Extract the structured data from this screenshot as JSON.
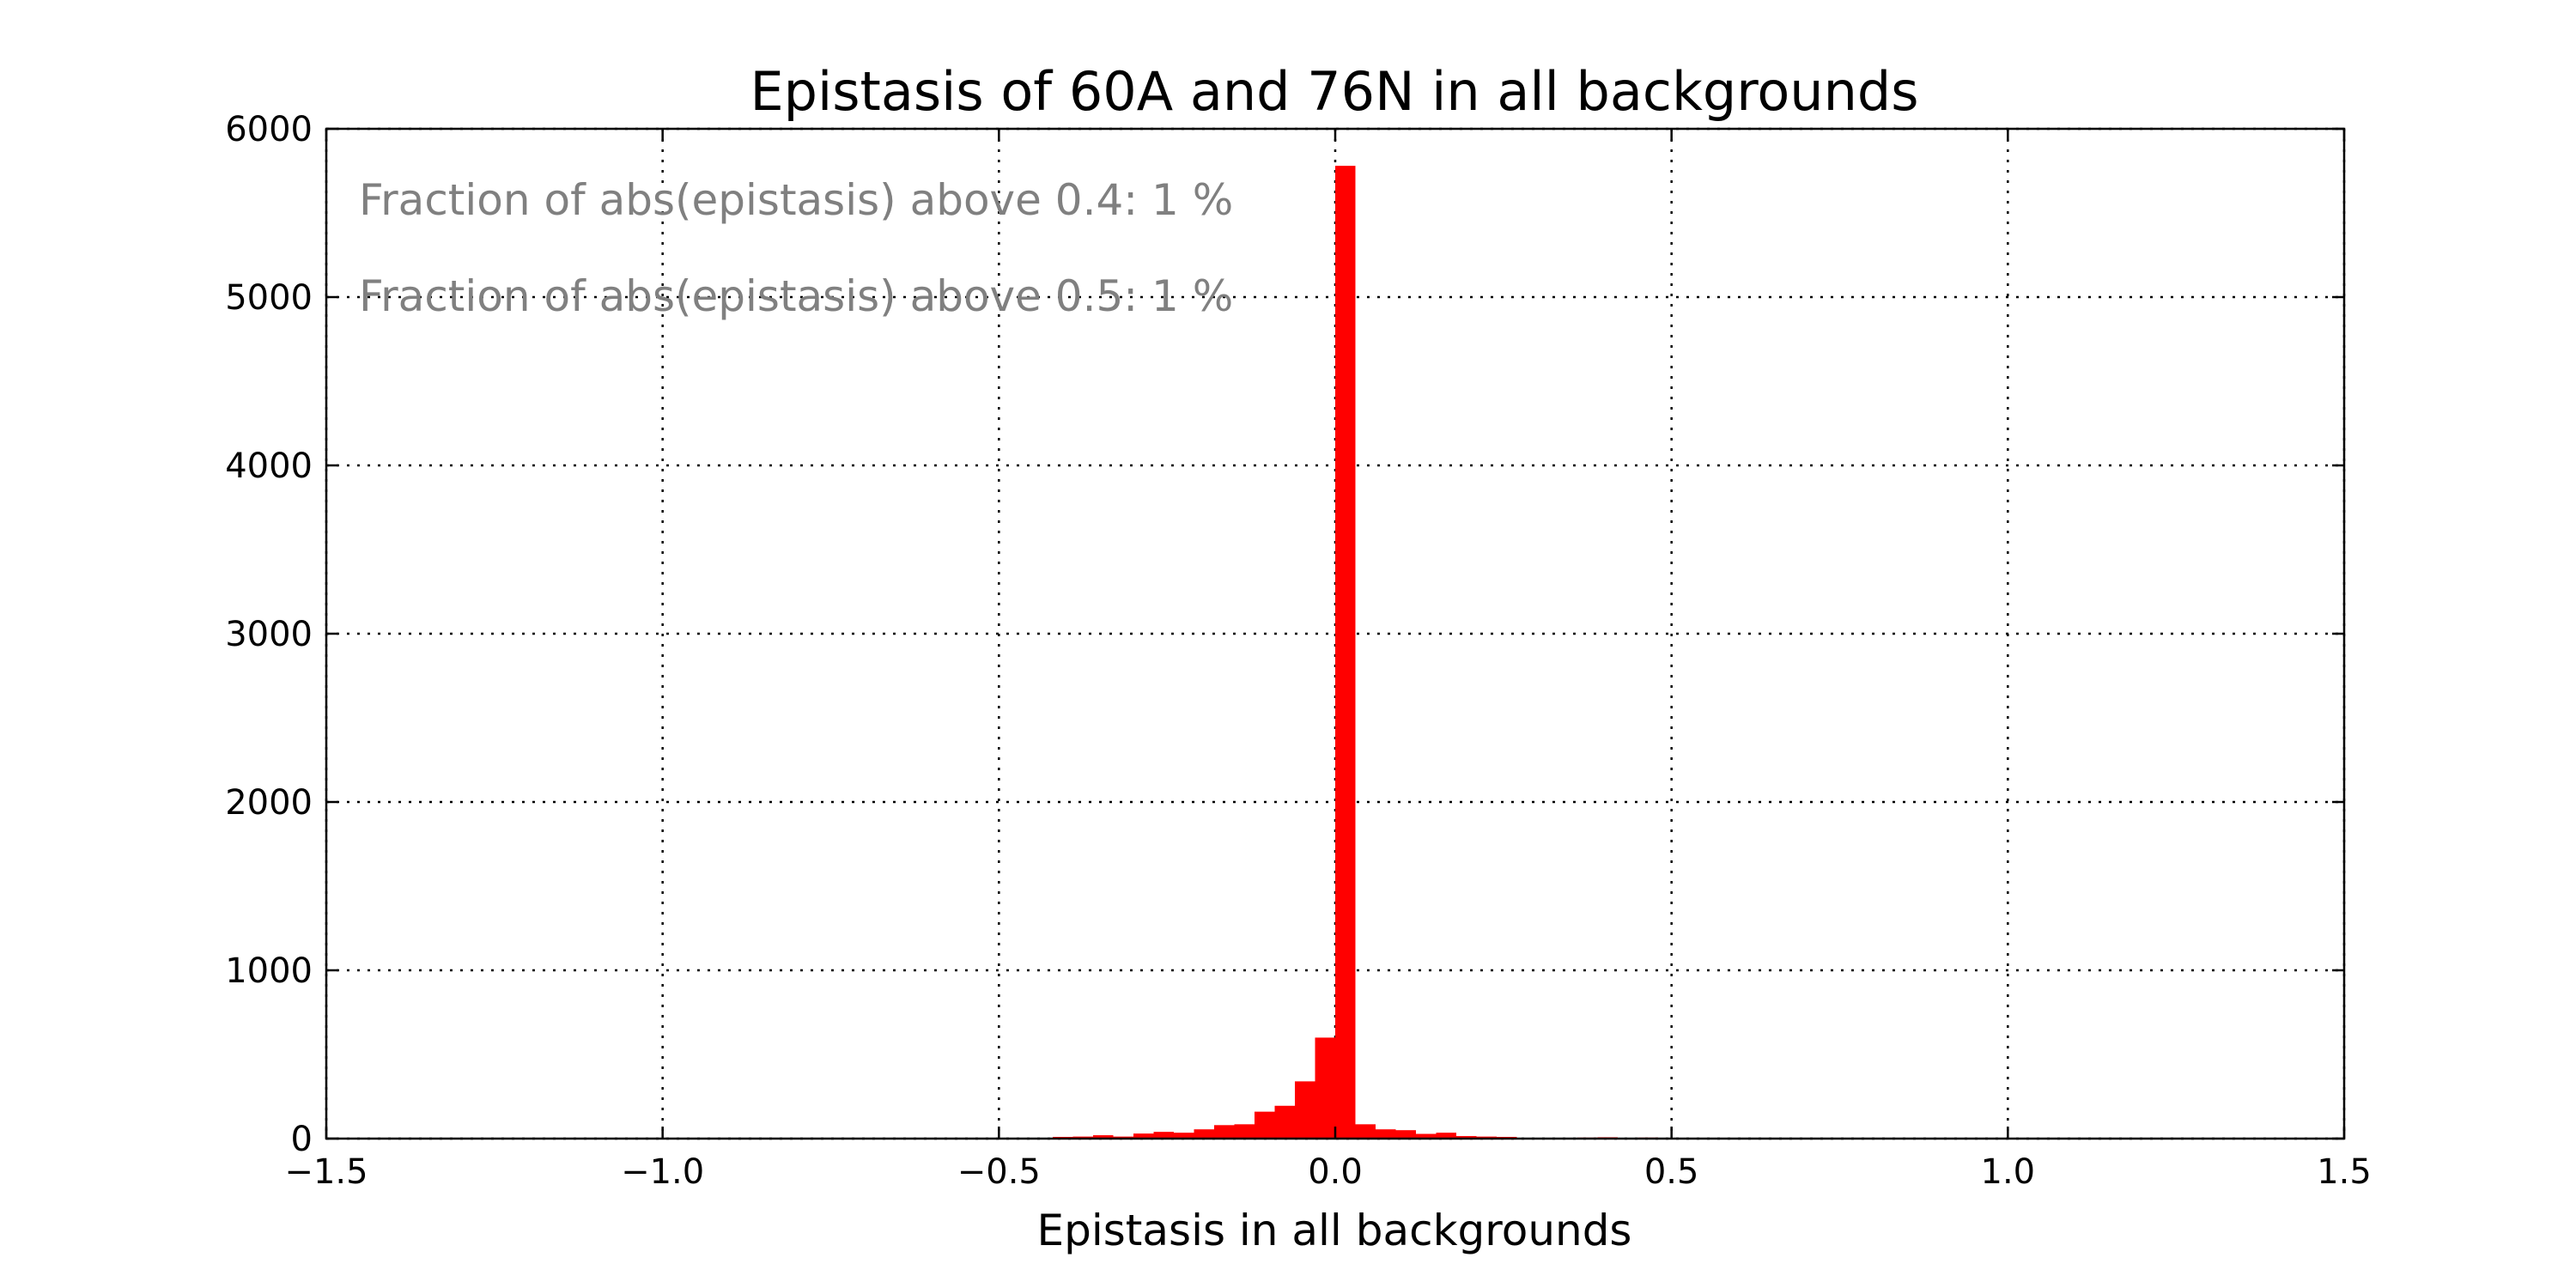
{
  "chart_data": {
    "type": "bar",
    "title": "Epistasis of 60A and 76N in all backgrounds",
    "xlabel": "Epistasis in all backgrounds",
    "ylabel": "",
    "xlim": [
      -1.5,
      1.5
    ],
    "ylim": [
      0,
      6000
    ],
    "x_ticks": [
      -1.5,
      -1.0,
      -0.5,
      0.0,
      0.5,
      1.0,
      1.5
    ],
    "x_tick_labels": [
      "−1.5",
      "−1.0",
      "−0.5",
      "0.0",
      "0.5",
      "1.0",
      "1.5"
    ],
    "y_ticks": [
      0,
      1000,
      2000,
      3000,
      4000,
      5000,
      6000
    ],
    "y_tick_labels": [
      "0",
      "1000",
      "2000",
      "3000",
      "4000",
      "5000",
      "6000"
    ],
    "grid": true,
    "bar_color": "#ff0000",
    "annotation_color": "#808080",
    "annotations": [
      "Fraction of abs(epistasis) above 0.4: 1 %",
      "Fraction of abs(epistasis) above 0.5: 1 %"
    ],
    "bin_width": 0.03,
    "bins": [
      {
        "x0": -0.42,
        "value": 10
      },
      {
        "x0": -0.39,
        "value": 12
      },
      {
        "x0": -0.36,
        "value": 20
      },
      {
        "x0": -0.33,
        "value": 12
      },
      {
        "x0": -0.3,
        "value": 30
      },
      {
        "x0": -0.27,
        "value": 40
      },
      {
        "x0": -0.24,
        "value": 35
      },
      {
        "x0": -0.21,
        "value": 55
      },
      {
        "x0": -0.18,
        "value": 80
      },
      {
        "x0": -0.15,
        "value": 85
      },
      {
        "x0": -0.12,
        "value": 160
      },
      {
        "x0": -0.09,
        "value": 195
      },
      {
        "x0": -0.06,
        "value": 340
      },
      {
        "x0": -0.03,
        "value": 600
      },
      {
        "x0": 0.0,
        "value": 5780
      },
      {
        "x0": 0.03,
        "value": 85
      },
      {
        "x0": 0.06,
        "value": 55
      },
      {
        "x0": 0.09,
        "value": 50
      },
      {
        "x0": 0.12,
        "value": 28
      },
      {
        "x0": 0.15,
        "value": 35
      },
      {
        "x0": 0.18,
        "value": 15
      },
      {
        "x0": 0.21,
        "value": 12
      },
      {
        "x0": 0.24,
        "value": 10
      },
      {
        "x0": 0.27,
        "value": 5
      },
      {
        "x0": 0.3,
        "value": 4
      },
      {
        "x0": 0.33,
        "value": 3
      },
      {
        "x0": 0.36,
        "value": 6
      },
      {
        "x0": 0.39,
        "value": 8
      },
      {
        "x0": 0.42,
        "value": 3
      },
      {
        "x0": 0.45,
        "value": 6
      }
    ]
  }
}
